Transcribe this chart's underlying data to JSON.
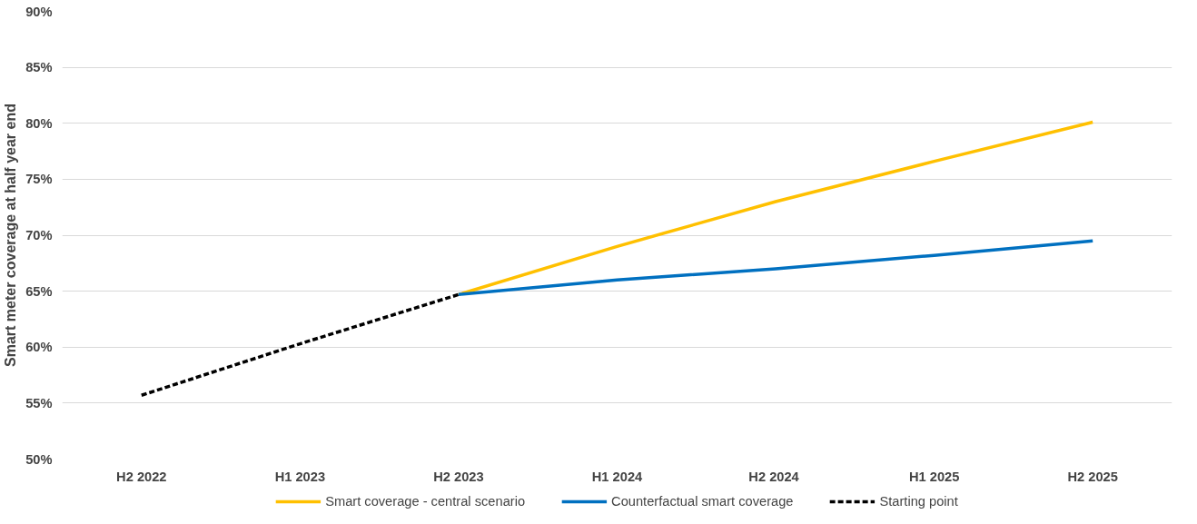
{
  "chart_data": {
    "type": "line",
    "ylabel": "Smart meter coverage at half year end",
    "categories": [
      "H2 2022",
      "H1 2023",
      "H2 2023",
      "H1 2024",
      "H2  2024",
      "H1 2025",
      "H2 2025"
    ],
    "series": [
      {
        "name": "Smart coverage - central scenario",
        "color": "#ffc000",
        "line_style": "solid",
        "values": [
          null,
          null,
          64.7,
          69.0,
          73.0,
          76.6,
          80.1
        ]
      },
      {
        "name": "Counterfactual smart coverage",
        "color": "#0070c0",
        "line_style": "solid",
        "values": [
          null,
          null,
          64.7,
          66.0,
          67.0,
          68.2,
          69.5
        ]
      },
      {
        "name": "Starting point",
        "color": "#000000",
        "line_style": "dashed",
        "values": [
          55.7,
          60.3,
          64.7,
          null,
          null,
          null,
          null
        ]
      }
    ],
    "ylim": [
      50,
      90
    ],
    "yticks": [
      {
        "value": 50,
        "label": "50%"
      },
      {
        "value": 55,
        "label": "55%"
      },
      {
        "value": 60,
        "label": "60%"
      },
      {
        "value": 65,
        "label": "65%"
      },
      {
        "value": 70,
        "label": "70%"
      },
      {
        "value": 75,
        "label": "75%"
      },
      {
        "value": 80,
        "label": "80%"
      },
      {
        "value": 85,
        "label": "85%"
      },
      {
        "value": 90,
        "label": "90%"
      }
    ],
    "grid": "y",
    "legend": "bottom",
    "marker": "none"
  }
}
